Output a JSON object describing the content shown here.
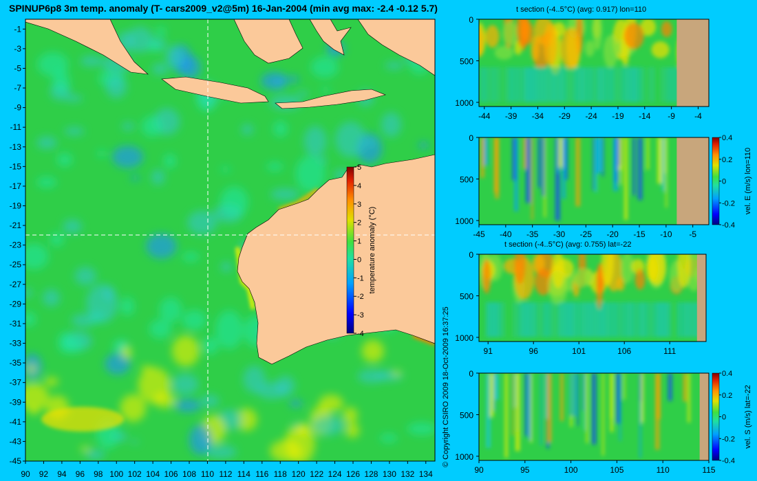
{
  "title": "SPINUP6p8 3m temp. anomaly (T- cars2009_v2@5m) 16-Jan-2004 (min avg max: -2.4 -0.12 5.7)",
  "copyright": "© Copyright CSIRO 2009   18-Oct-2009 16:37:25",
  "colors": {
    "background": "#00ccff",
    "ocean_base": "#2fce48",
    "land": "#fbc99a",
    "land_section": "#c8a67c"
  },
  "chart_data": [
    {
      "type": "heatmap",
      "id": "map",
      "title": "SPINUP6p8 3m temp. anomaly (T- cars2009_v2@5m) 16-Jan-2004 (min avg max: -2.4 -0.12 5.7)",
      "x_ticks": [
        90,
        92,
        94,
        96,
        98,
        100,
        102,
        104,
        106,
        108,
        110,
        112,
        114,
        116,
        118,
        120,
        122,
        124,
        126,
        128,
        130,
        132,
        134
      ],
      "y_ticks": [
        -1,
        -3,
        -5,
        -7,
        -9,
        -11,
        -13,
        -15,
        -17,
        -19,
        -21,
        -23,
        -25,
        -27,
        -29,
        -31,
        -33,
        -35,
        -37,
        -39,
        -41,
        -43,
        -45
      ],
      "xlim": [
        90,
        135
      ],
      "ylim": [
        -45,
        0
      ],
      "crosshair": {
        "lon": 110,
        "lat": -22
      },
      "colorbar": {
        "label": "temperature anomaly (°C)",
        "ticks": [
          5,
          4,
          3,
          2,
          1,
          0,
          -1,
          -2,
          -3,
          -4
        ],
        "range": [
          -4,
          5
        ]
      }
    },
    {
      "type": "heatmap",
      "id": "tsec_lon",
      "title": "t section (-4..5°C)  (avg: 0.917)  lon=110",
      "x_ticks": [
        -44,
        -39,
        -34,
        -29,
        -24,
        -19,
        -14,
        -9,
        -4
      ],
      "y_ticks": [
        0,
        500,
        1000
      ],
      "xlim": [
        -45,
        -2
      ],
      "ylim": [
        1050,
        0
      ],
      "land_from": -8
    },
    {
      "type": "heatmap",
      "id": "vel_lon",
      "title": "",
      "x_ticks": [
        -45,
        -40,
        -35,
        -30,
        -25,
        -20,
        -15,
        -10,
        -5
      ],
      "y_ticks": [
        0,
        500,
        1000
      ],
      "xlim": [
        -45,
        -2
      ],
      "ylim": [
        1050,
        0
      ],
      "land_from": -8,
      "colorbar": {
        "label": "vel. E (m/s) lon=110",
        "ticks": [
          0.4,
          0.2,
          0,
          -0.2,
          -0.4
        ],
        "range": [
          -0.4,
          0.4
        ]
      }
    },
    {
      "type": "heatmap",
      "id": "tsec_lat",
      "title": "t section (-4..5°C)  (avg: 0.755)  lat=-22",
      "x_ticks": [
        91,
        96,
        101,
        106,
        111
      ],
      "y_ticks": [
        0,
        500,
        1000
      ],
      "xlim": [
        90,
        115
      ],
      "ylim": [
        1050,
        0
      ],
      "land_from": 114
    },
    {
      "type": "heatmap",
      "id": "vel_lat",
      "title": "",
      "x_ticks": [
        90,
        95,
        100,
        105,
        110,
        115
      ],
      "y_ticks": [
        0,
        500,
        1000
      ],
      "xlim": [
        90,
        115
      ],
      "ylim": [
        1050,
        0
      ],
      "land_from": 114,
      "colorbar": {
        "label": "vel. S (m/s) lat=-22",
        "ticks": [
          0.4,
          0.2,
          0,
          -0.2,
          -0.4
        ],
        "range": [
          -0.4,
          0.4
        ]
      }
    }
  ]
}
